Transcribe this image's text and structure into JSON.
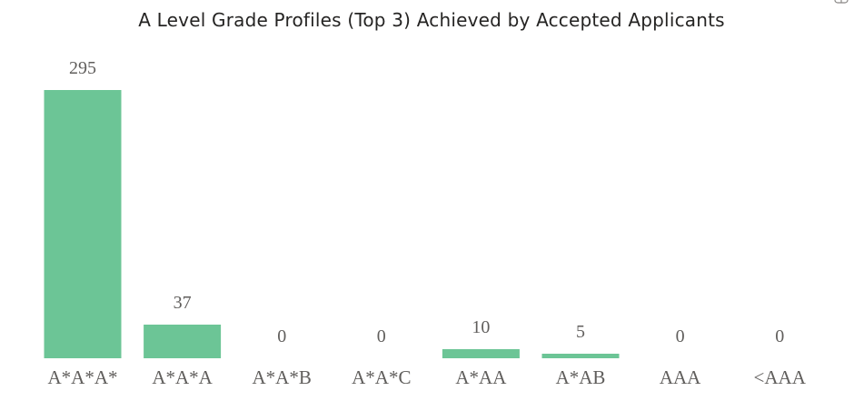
{
  "chart_data": {
    "type": "bar",
    "title": "A Level Grade Profiles (Top 3) Achieved by Accepted Applicants",
    "categories": [
      "A*A*A*",
      "A*A*A",
      "A*A*B",
      "A*A*C",
      "A*AA",
      "A*AB",
      "AAA",
      "<AAA"
    ],
    "values": [
      295,
      37,
      0,
      0,
      10,
      5,
      0,
      0
    ],
    "data_labels": [
      "295",
      "37",
      "0",
      "0",
      "10",
      "5",
      "0",
      "0"
    ],
    "xlabel": "",
    "ylabel": "",
    "ylim": [
      0,
      295
    ],
    "grid": false,
    "legend": "none",
    "bar_color": "#6cc596"
  },
  "icons": {
    "corner": "focus-mode-icon"
  }
}
